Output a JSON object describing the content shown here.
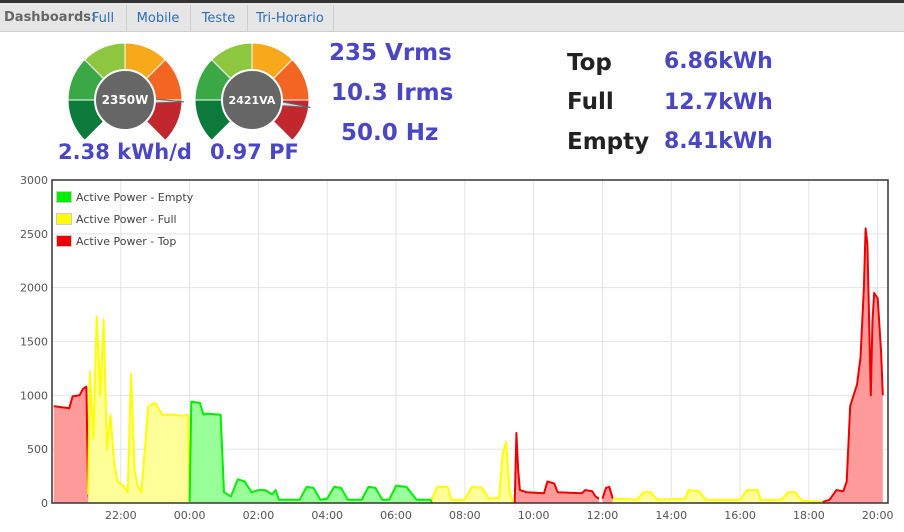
{
  "nav": {
    "label": "Dashboards:",
    "tabs": [
      "Full",
      "Mobile",
      "Teste",
      "Tri-Horario"
    ]
  },
  "gauges": [
    {
      "value_text": "2350W",
      "caption": "2.38 kWh/d",
      "needle_fraction": 0.84
    },
    {
      "value_text": "2421VA",
      "caption": "0.97 PF",
      "needle_fraction": 0.86
    }
  ],
  "readings": {
    "voltage": "235 Vrms",
    "current": "10.3 Irms",
    "frequency": "50.0 Hz"
  },
  "summary": [
    {
      "label": "Top",
      "value": "6.86kWh"
    },
    {
      "label": "Full",
      "value": "12.7kWh"
    },
    {
      "label": "Empty",
      "value": "8.41kWh"
    }
  ],
  "colors": {
    "accent": "#4a46c4",
    "empty": "#00ee00",
    "full": "#ffff00",
    "top": "#ee0000"
  },
  "chart_data": {
    "type": "area",
    "ylim": [
      0,
      3000
    ],
    "y_ticks": [
      "0",
      "500",
      "1000",
      "1500",
      "2000",
      "2500",
      "3000"
    ],
    "x_range": [
      20.0,
      44.3
    ],
    "x_ticks": [
      {
        "x": 22,
        "label": "22:00"
      },
      {
        "x": 24,
        "label": "00:00"
      },
      {
        "x": 26,
        "label": "02:00"
      },
      {
        "x": 28,
        "label": "04:00"
      },
      {
        "x": 30,
        "label": "06:00"
      },
      {
        "x": 32,
        "label": "08:00"
      },
      {
        "x": 34,
        "label": "10:00"
      },
      {
        "x": 36,
        "label": "12:00"
      },
      {
        "x": 38,
        "label": "14:00"
      },
      {
        "x": 40,
        "label": "16:00"
      },
      {
        "x": 42,
        "label": "18:00"
      },
      {
        "x": 44,
        "label": "20:00"
      }
    ],
    "legend": [
      "Active Power - Empty",
      "Active Power - Full",
      "Active Power - Top"
    ],
    "series": [
      {
        "name": "Active Power - Top",
        "color": "#ee0000",
        "fill": "#ff9a9a",
        "segments": [
          [
            [
              20.05,
              900
            ],
            [
              20.5,
              880
            ],
            [
              20.6,
              990
            ],
            [
              20.8,
              1000
            ],
            [
              20.9,
              1060
            ],
            [
              21.0,
              1080
            ],
            [
              21.05,
              100
            ],
            [
              21.1,
              0
            ]
          ],
          [
            [
              33.45,
              0
            ],
            [
              33.5,
              650
            ],
            [
              33.55,
              300
            ],
            [
              33.6,
              120
            ],
            [
              33.8,
              100
            ],
            [
              34.3,
              90
            ],
            [
              34.4,
              200
            ],
            [
              34.6,
              180
            ],
            [
              34.7,
              100
            ],
            [
              35.4,
              90
            ],
            [
              35.5,
              120
            ],
            [
              35.7,
              110
            ],
            [
              35.8,
              60
            ],
            [
              35.9,
              40
            ]
          ],
          [
            [
              36.0,
              40
            ],
            [
              36.1,
              140
            ],
            [
              36.2,
              150
            ],
            [
              36.3,
              40
            ]
          ],
          [
            [
              42.4,
              10
            ],
            [
              42.6,
              30
            ],
            [
              42.8,
              120
            ],
            [
              43.0,
              110
            ],
            [
              43.1,
              200
            ],
            [
              43.2,
              900
            ],
            [
              43.4,
              1100
            ],
            [
              43.5,
              1350
            ],
            [
              43.6,
              2000
            ],
            [
              43.65,
              2550
            ],
            [
              43.7,
              2400
            ],
            [
              43.8,
              1000
            ],
            [
              43.85,
              1700
            ],
            [
              43.9,
              1950
            ],
            [
              44.0,
              1900
            ],
            [
              44.1,
              1400
            ],
            [
              44.15,
              1000
            ]
          ]
        ]
      },
      {
        "name": "Active Power - Full",
        "color": "#ffff00",
        "fill": "#ffff99",
        "segments": [
          [
            [
              21.05,
              80
            ],
            [
              21.1,
              1220
            ],
            [
              21.2,
              600
            ],
            [
              21.3,
              1730
            ],
            [
              21.4,
              1000
            ],
            [
              21.5,
              1700
            ],
            [
              21.6,
              500
            ],
            [
              21.7,
              820
            ],
            [
              21.8,
              400
            ],
            [
              21.9,
              200
            ],
            [
              22.0,
              180
            ],
            [
              22.1,
              150
            ],
            [
              22.2,
              100
            ],
            [
              22.3,
              1200
            ],
            [
              22.4,
              300
            ],
            [
              22.5,
              150
            ],
            [
              22.6,
              100
            ],
            [
              22.8,
              900
            ],
            [
              23.0,
              930
            ],
            [
              23.2,
              820
            ],
            [
              23.5,
              820
            ],
            [
              23.8,
              810
            ],
            [
              23.95,
              820
            ],
            [
              24.0,
              10
            ]
          ],
          [
            [
              30.8,
              0
            ],
            [
              31.0,
              10
            ],
            [
              31.2,
              150
            ],
            [
              31.5,
              150
            ],
            [
              31.6,
              30
            ],
            [
              32.0,
              30
            ],
            [
              32.2,
              150
            ],
            [
              32.5,
              140
            ],
            [
              32.7,
              40
            ],
            [
              33.0,
              50
            ],
            [
              33.1,
              450
            ],
            [
              33.2,
              570
            ],
            [
              33.3,
              100
            ],
            [
              33.4,
              10
            ]
          ],
          [
            [
              36.3,
              40
            ],
            [
              36.5,
              40
            ],
            [
              37.0,
              30
            ],
            [
              37.2,
              100
            ],
            [
              37.4,
              100
            ],
            [
              37.6,
              30
            ],
            [
              38.4,
              40
            ],
            [
              38.5,
              120
            ],
            [
              38.8,
              110
            ],
            [
              39.0,
              30
            ],
            [
              40.0,
              30
            ],
            [
              40.2,
              120
            ],
            [
              40.5,
              120
            ],
            [
              40.6,
              30
            ],
            [
              41.2,
              30
            ],
            [
              41.4,
              100
            ],
            [
              41.6,
              100
            ],
            [
              41.8,
              20
            ],
            [
              42.4,
              10
            ]
          ]
        ]
      },
      {
        "name": "Active Power - Empty",
        "color": "#00ee00",
        "fill": "#99ff99",
        "segments": [
          [
            [
              24.0,
              10
            ],
            [
              24.05,
              940
            ],
            [
              24.3,
              930
            ],
            [
              24.4,
              820
            ],
            [
              24.5,
              830
            ],
            [
              24.9,
              820
            ],
            [
              25.0,
              100
            ],
            [
              25.2,
              60
            ],
            [
              25.4,
              220
            ],
            [
              25.6,
              200
            ],
            [
              25.8,
              100
            ],
            [
              26.0,
              120
            ],
            [
              26.2,
              120
            ],
            [
              26.4,
              80
            ],
            [
              26.5,
              120
            ],
            [
              26.6,
              30
            ],
            [
              27.2,
              30
            ],
            [
              27.4,
              150
            ],
            [
              27.6,
              140
            ],
            [
              27.8,
              30
            ],
            [
              28.0,
              40
            ],
            [
              28.2,
              150
            ],
            [
              28.4,
              140
            ],
            [
              28.6,
              30
            ],
            [
              29.0,
              30
            ],
            [
              29.2,
              150
            ],
            [
              29.4,
              140
            ],
            [
              29.6,
              30
            ],
            [
              29.8,
              30
            ],
            [
              30.0,
              160
            ],
            [
              30.3,
              150
            ],
            [
              30.6,
              30
            ],
            [
              31.0,
              30
            ],
            [
              31.05,
              0
            ]
          ]
        ]
      }
    ]
  }
}
